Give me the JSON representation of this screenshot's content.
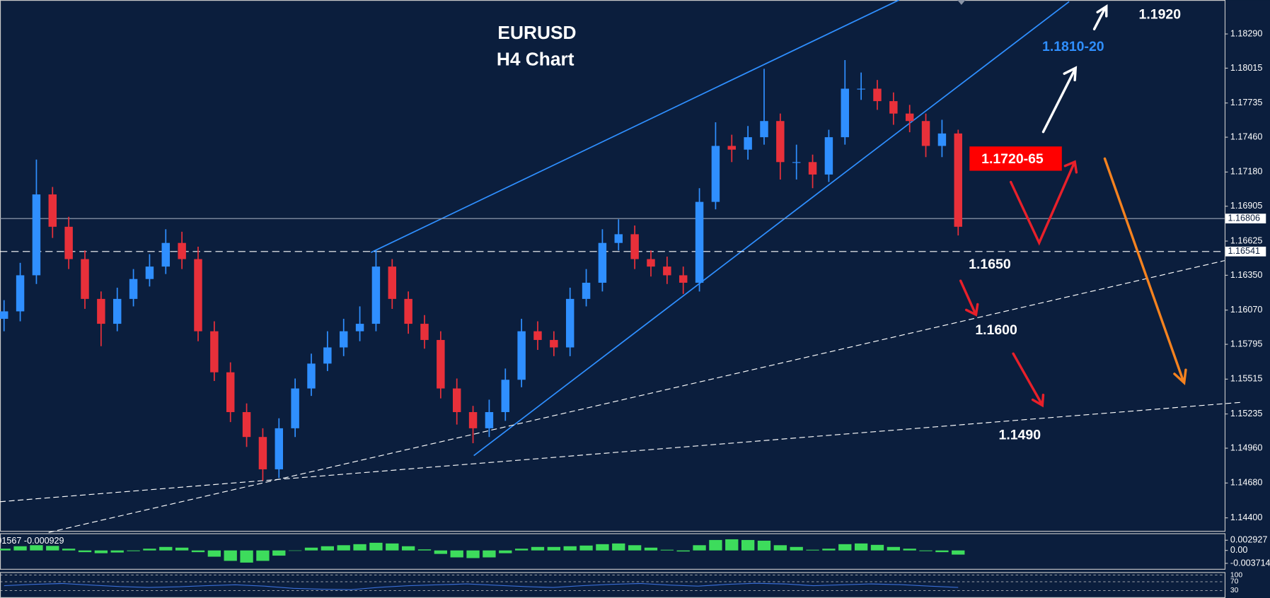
{
  "chart_data": [
    {
      "type": "candlestick",
      "title": "EURUSD",
      "subtitle": "H4 Chart",
      "up_color": "#2f8fff",
      "down_color": "#e8303a",
      "ylim": [
        1.14302,
        1.18563
      ],
      "yticks": [
        {
          "value": 1.1829,
          "label": "1.18290"
        },
        1.18015,
        1.17735,
        {
          "value": 1.1746,
          "label": "1.17460"
        },
        {
          "value": 1.1718,
          "label": "1.17180"
        },
        1.16905,
        1.16625,
        {
          "value": 1.1635,
          "label": "1.16350"
        },
        {
          "value": 1.1607,
          "label": "1.16070"
        },
        1.15795,
        1.15515,
        1.15235,
        {
          "value": 1.1496,
          "label": "1.14960"
        },
        {
          "value": 1.1468,
          "label": "1.14680"
        },
        {
          "value": 1.144,
          "label": "1.14400"
        }
      ],
      "price_lines": [
        {
          "value": 1.16806,
          "label": "1.16806",
          "style": "solid"
        },
        {
          "value": 1.16541,
          "label": "1.16541",
          "style": "dashed"
        }
      ],
      "annotations": [
        "1.1920",
        "1.1810-20",
        "1.1720-65",
        "1.1650",
        "1.1600",
        "1.1490"
      ],
      "open": [
        1.16,
        1.1606,
        1.1635,
        1.17,
        1.1674,
        1.1648,
        1.1616,
        1.1596,
        1.1616,
        1.1632,
        1.1642,
        1.1661,
        1.1648,
        1.159,
        1.1557,
        1.1525,
        1.1505,
        1.1479,
        1.1512,
        1.1544,
        1.1564,
        1.1577,
        1.159,
        1.1596,
        1.1642,
        1.1616,
        1.1596,
        1.1583,
        1.1544,
        1.1525,
        1.1512,
        1.1525,
        1.1551,
        1.159,
        1.1583,
        1.1577,
        1.1616,
        1.1629,
        1.1661,
        1.1668,
        1.1648,
        1.1642,
        1.1635,
        1.1629,
        1.1694,
        1.1739,
        1.1736,
        1.1746,
        1.1759,
        1.1726,
        1.1726,
        1.1716,
        1.1746,
        1.1785,
        1.1785,
        1.1775,
        1.1765,
        1.1759,
        1.1739,
        1.1749
      ],
      "high": [
        1.1615,
        1.1645,
        1.1728,
        1.1706,
        1.1682,
        1.1655,
        1.1622,
        1.1625,
        1.164,
        1.1652,
        1.1672,
        1.167,
        1.1658,
        1.1598,
        1.1565,
        1.1532,
        1.1512,
        1.152,
        1.1552,
        1.1572,
        1.159,
        1.16,
        1.161,
        1.1655,
        1.1648,
        1.1622,
        1.1603,
        1.159,
        1.1552,
        1.153,
        1.1535,
        1.156,
        1.16,
        1.1598,
        1.159,
        1.1625,
        1.164,
        1.1672,
        1.168,
        1.1675,
        1.1655,
        1.165,
        1.1642,
        1.1705,
        1.1758,
        1.1748,
        1.1755,
        1.1801,
        1.1765,
        1.174,
        1.1732,
        1.1752,
        1.1808,
        1.1798,
        1.1792,
        1.1782,
        1.1772,
        1.1765,
        1.176,
        1.1752
      ],
      "low": [
        1.159,
        1.1598,
        1.1628,
        1.1665,
        1.164,
        1.1608,
        1.1578,
        1.159,
        1.161,
        1.1626,
        1.1636,
        1.164,
        1.1582,
        1.155,
        1.1517,
        1.1497,
        1.147,
        1.1472,
        1.1505,
        1.1538,
        1.1558,
        1.157,
        1.1582,
        1.159,
        1.1608,
        1.1588,
        1.1576,
        1.1536,
        1.1515,
        1.15,
        1.1505,
        1.1518,
        1.1545,
        1.1575,
        1.157,
        1.157,
        1.161,
        1.1622,
        1.1655,
        1.164,
        1.1634,
        1.1628,
        1.162,
        1.1622,
        1.1688,
        1.1726,
        1.1728,
        1.174,
        1.1712,
        1.1712,
        1.1705,
        1.171,
        1.174,
        1.1776,
        1.1768,
        1.1756,
        1.175,
        1.173,
        1.173,
        1.1667
      ],
      "close": [
        1.1606,
        1.1635,
        1.17,
        1.1674,
        1.1648,
        1.1616,
        1.1596,
        1.1616,
        1.1632,
        1.1642,
        1.1661,
        1.1648,
        1.159,
        1.1557,
        1.1525,
        1.1505,
        1.1479,
        1.1512,
        1.1544,
        1.1564,
        1.1577,
        1.159,
        1.1596,
        1.1642,
        1.1616,
        1.1596,
        1.1583,
        1.1544,
        1.1525,
        1.1512,
        1.1525,
        1.1551,
        1.159,
        1.1583,
        1.1577,
        1.1616,
        1.1629,
        1.1661,
        1.1668,
        1.1648,
        1.1642,
        1.1635,
        1.1629,
        1.1694,
        1.1739,
        1.1736,
        1.1746,
        1.1759,
        1.1726,
        1.1726,
        1.1716,
        1.1746,
        1.1785,
        1.1785,
        1.1775,
        1.1765,
        1.1759,
        1.1739,
        1.1749,
        1.1674
      ]
    },
    {
      "type": "bar",
      "label": "01567 -0.000929",
      "color": "#3ddc5c",
      "ylim": [
        -0.0053,
        0.0047
      ],
      "yticks": [
        0.002927,
        {
          "value": 0,
          "label": "0.00"
        },
        -0.003714
      ],
      "values": [
        0.0005,
        0.0012,
        0.0015,
        0.0013,
        0.0005,
        -0.0005,
        -0.0008,
        -0.0006,
        -0.0002,
        0.0005,
        0.001,
        0.0008,
        -0.0005,
        -0.0018,
        -0.003,
        -0.0035,
        -0.003,
        -0.0015,
        0.0,
        0.0008,
        0.0012,
        0.0015,
        0.0018,
        0.0022,
        0.002,
        0.0012,
        0.0003,
        -0.001,
        -0.002,
        -0.0022,
        -0.002,
        -0.0008,
        0.0005,
        0.001,
        0.001,
        0.0012,
        0.0014,
        0.0018,
        0.002,
        0.0015,
        0.0008,
        0.0002,
        -0.0003,
        0.0015,
        0.003,
        0.0032,
        0.003,
        0.0028,
        0.0015,
        0.001,
        0.0002,
        0.0005,
        0.0018,
        0.002,
        0.0016,
        0.001,
        0.0005,
        -0.0002,
        -0.0005,
        -0.0012
      ]
    },
    {
      "type": "line",
      "color": "#3a6fd8",
      "ylim": [
        0,
        110
      ],
      "yticks": [
        100,
        70,
        30
      ],
      "values": [
        52,
        58,
        62,
        55,
        48,
        44,
        47,
        52,
        56,
        50,
        40,
        36,
        34,
        45,
        52,
        56,
        60,
        54,
        48,
        44,
        52,
        58,
        62,
        55,
        50,
        58,
        63,
        60,
        52,
        56,
        60,
        57,
        50,
        44
      ]
    }
  ]
}
